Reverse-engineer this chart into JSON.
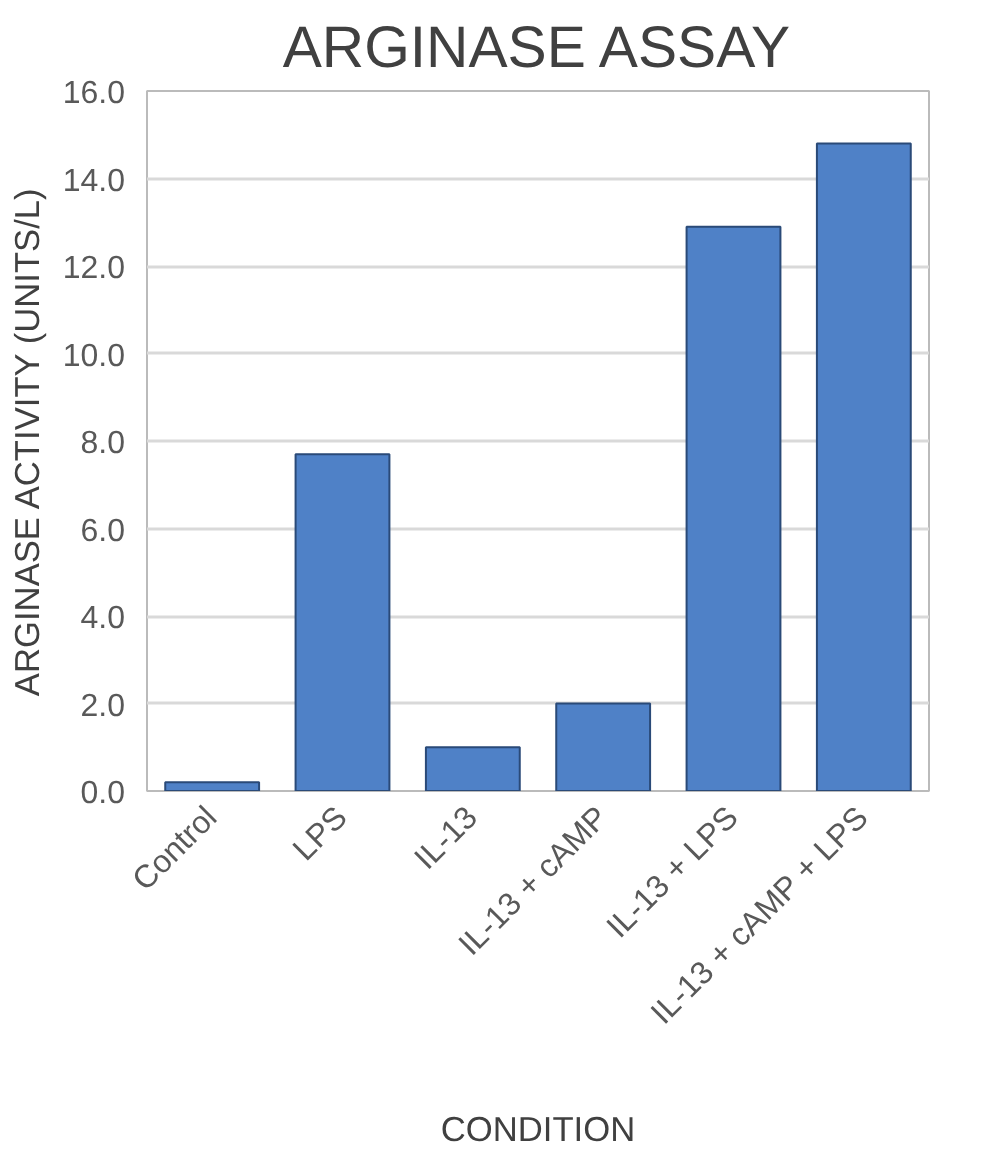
{
  "chart_data": {
    "type": "bar",
    "title": "ARGINASE ASSAY",
    "xlabel": "CONDITION",
    "ylabel": "ARGINASE ACTIVITY (UNITS/L)",
    "categories": [
      "Control",
      "LPS",
      "IL-13",
      "IL-13 + cAMP",
      "IL-13 + LPS",
      "IL-13 + cAMP + LPS"
    ],
    "values": [
      0.2,
      7.7,
      1.0,
      2.0,
      12.9,
      14.8
    ],
    "color": "#4f81c7",
    "ylim": [
      0,
      16
    ],
    "yticks": [
      {
        "value": 0,
        "label": "0.0"
      },
      {
        "value": 2,
        "label": "2.0"
      },
      {
        "value": 4,
        "label": "4.0"
      },
      {
        "value": 6,
        "label": "6.0"
      },
      {
        "value": 8,
        "label": "8.0"
      },
      {
        "value": 10,
        "label": "10.0"
      },
      {
        "value": 12,
        "label": "12.0"
      },
      {
        "value": 14,
        "label": "14.0"
      },
      {
        "value": 16,
        "label": "16.0"
      }
    ],
    "grid": "y"
  }
}
